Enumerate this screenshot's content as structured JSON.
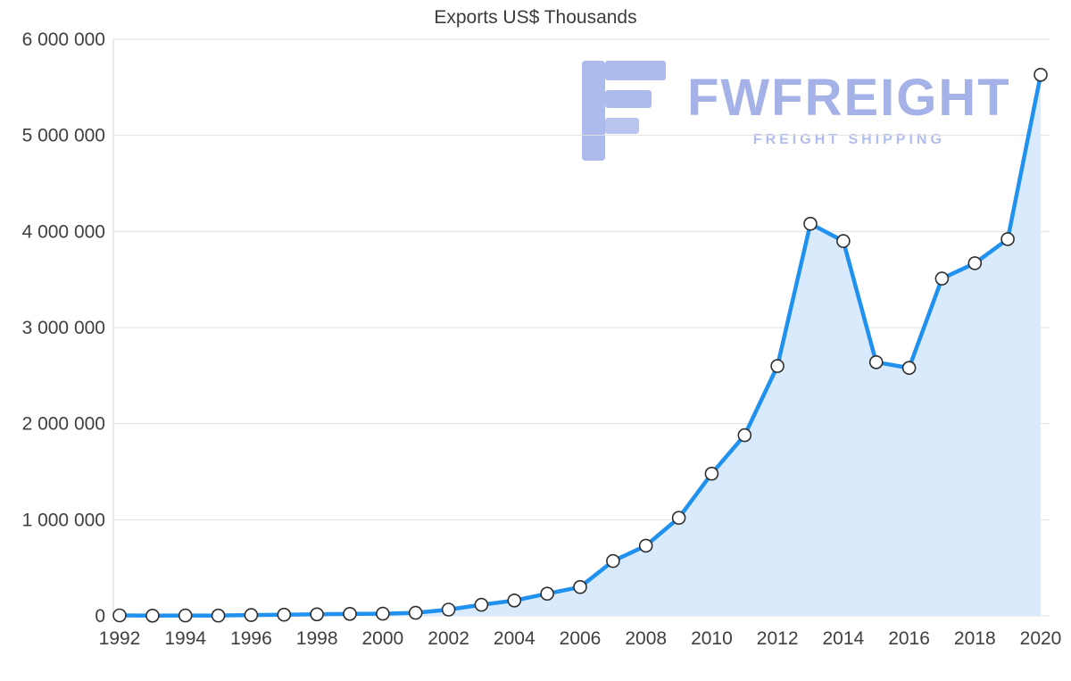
{
  "title": "Exports US$ Thousands",
  "watermark": {
    "brand": "FWFREIGHT",
    "tagline": "FREIGHT SHIPPING",
    "color": "#a5b2e8"
  },
  "chart_data": {
    "type": "area",
    "title": "Exports US$ Thousands",
    "xlabel": "",
    "ylabel": "",
    "x": [
      1992,
      1993,
      1994,
      1995,
      1996,
      1997,
      1998,
      1999,
      2000,
      2001,
      2002,
      2003,
      2004,
      2005,
      2006,
      2007,
      2008,
      2009,
      2010,
      2011,
      2012,
      2013,
      2014,
      2015,
      2016,
      2017,
      2018,
      2019,
      2020
    ],
    "series": [
      {
        "name": "Exports US$ Thousands",
        "values": [
          5000,
          2000,
          4000,
          3000,
          8000,
          12000,
          16000,
          20000,
          22000,
          32000,
          65000,
          115000,
          160000,
          230000,
          300000,
          570000,
          730000,
          1020000,
          1480000,
          1880000,
          2600000,
          4080000,
          3900000,
          2640000,
          2580000,
          3510000,
          3670000,
          3920000,
          5630000
        ]
      }
    ],
    "ylim": [
      0,
      6000000
    ],
    "y_tick_step": 1000000,
    "y_tick_labels": [
      "0",
      "1 000 000",
      "2 000 000",
      "3 000 000",
      "4 000 000",
      "5 000 000",
      "6 000 000"
    ],
    "x_tick_step": 2,
    "x_tick_labels": [
      "1992",
      "1994",
      "1996",
      "1998",
      "2000",
      "2002",
      "2004",
      "2006",
      "2008",
      "2010",
      "2012",
      "2014",
      "2016",
      "2018",
      "2020"
    ],
    "grid": true,
    "legend": false,
    "colors": {
      "line": "#2191f0",
      "area": "#d8eafc",
      "marker_fill": "#ffffff",
      "marker_stroke": "#2e2e2e",
      "grid": "#e0e0e0",
      "axis_line": "#d6d6d6",
      "axis_text": "#3f3f3f",
      "title_text": "#3b3b3b"
    }
  }
}
